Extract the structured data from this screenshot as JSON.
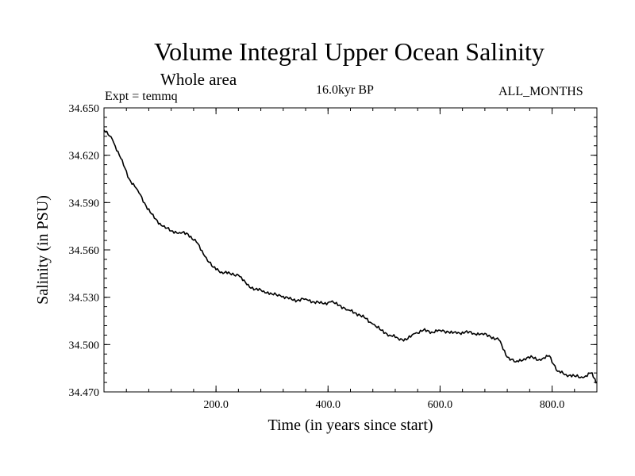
{
  "chart_data": {
    "type": "line",
    "title": "Volume Integral Upper Ocean Salinity",
    "subtitle": "Whole area",
    "label_left": "Expt = temmq",
    "label_center": "16.0kyr BP",
    "label_right": "ALL_MONTHS",
    "xlabel": "Time (in years since start)",
    "ylabel": "Salinity (in PSU)",
    "xlim": [
      0,
      880
    ],
    "ylim": [
      34.47,
      34.65
    ],
    "x_ticks": [
      200,
      400,
      600,
      800
    ],
    "x_tick_labels": [
      "200.0",
      "400.0",
      "600.0",
      "800.0"
    ],
    "y_ticks": [
      34.47,
      34.5,
      34.53,
      34.56,
      34.59,
      34.62,
      34.65
    ],
    "y_tick_labels": [
      "34.470",
      "34.500",
      "34.530",
      "34.560",
      "34.590",
      "34.620",
      "34.650"
    ],
    "series": [
      {
        "name": "salinity",
        "x": [
          0,
          15,
          30,
          45,
          60,
          75,
          90,
          105,
          120,
          135,
          150,
          165,
          180,
          195,
          210,
          225,
          240,
          255,
          270,
          285,
          300,
          315,
          330,
          345,
          360,
          375,
          390,
          405,
          420,
          435,
          450,
          465,
          480,
          495,
          510,
          525,
          540,
          555,
          570,
          585,
          600,
          615,
          630,
          645,
          660,
          675,
          690,
          705,
          720,
          735,
          750,
          765,
          780,
          795,
          810,
          825,
          840,
          855,
          870,
          880
        ],
        "y": [
          34.636,
          34.63,
          34.618,
          34.605,
          34.598,
          34.588,
          34.58,
          34.575,
          34.572,
          34.571,
          34.57,
          34.565,
          34.556,
          34.549,
          34.546,
          34.545,
          34.544,
          34.538,
          34.535,
          34.534,
          34.532,
          34.531,
          34.529,
          34.528,
          34.529,
          34.527,
          34.526,
          34.527,
          34.525,
          34.522,
          34.52,
          34.517,
          34.513,
          34.509,
          34.506,
          34.504,
          34.503,
          34.507,
          34.509,
          34.508,
          34.509,
          34.508,
          34.507,
          34.508,
          34.507,
          34.507,
          34.505,
          34.503,
          34.492,
          34.489,
          34.491,
          34.492,
          34.49,
          34.493,
          34.483,
          34.481,
          34.48,
          34.479,
          34.482,
          34.476
        ]
      }
    ]
  }
}
